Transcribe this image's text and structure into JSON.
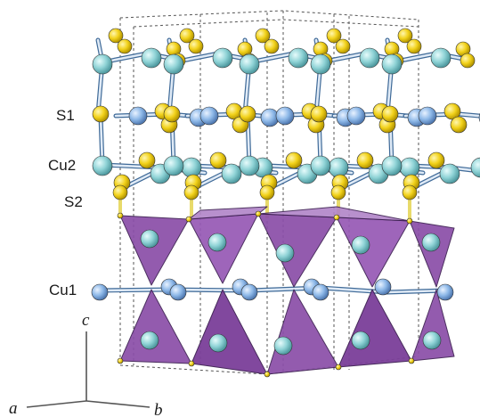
{
  "figure": {
    "site_labels": [
      "S1",
      "Cu2",
      "S2",
      "Cu1"
    ],
    "axes": {
      "a": "a",
      "b": "b",
      "c": "c"
    }
  },
  "colors": {
    "sulfur": "#f2d21b",
    "copper_teal": "#8fd3d6",
    "copper_blue": "#8db8e8",
    "tetrahedron": "#8a4ea8",
    "bond": "#4d78a8",
    "cell_lines": "#555555"
  }
}
